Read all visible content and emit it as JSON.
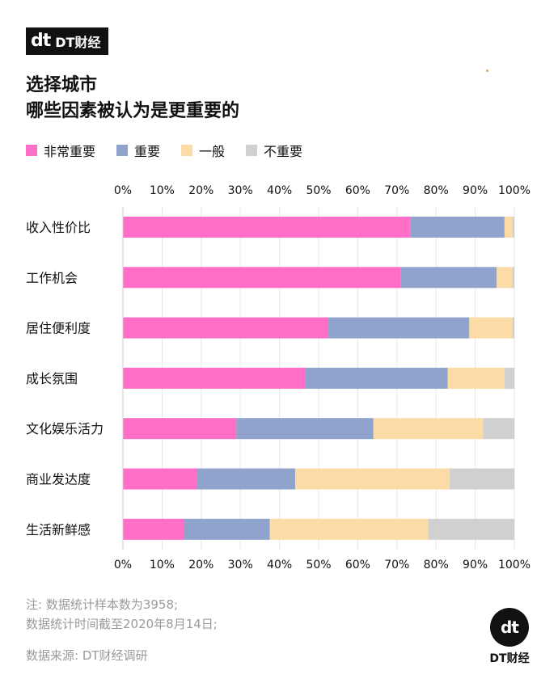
{
  "brand": {
    "logo_mark": "dt",
    "name": "DT财经",
    "accent_dot_color": "#f0a030"
  },
  "title": {
    "line1": "选择城市",
    "line2": "哪些因素被认为是更重要的"
  },
  "notes": {
    "line1": "注: 数据统计样本数为3958;",
    "line2": "数据统计时间截至2020年8月14日;"
  },
  "source": "数据来源: DT财经调研",
  "chart_data": {
    "type": "bar",
    "orientation": "horizontal",
    "stacked": true,
    "categories": [
      "收入性价比",
      "工作机会",
      "居住便利度",
      "成长氛围",
      "文化娱乐活力",
      "商业发达度",
      "生活新鲜感"
    ],
    "series": [
      {
        "name": "非常重要",
        "color": "#ff6ec7",
        "values": [
          73.5,
          71.0,
          52.5,
          46.5,
          29.0,
          19.0,
          15.5
        ]
      },
      {
        "name": "重要",
        "color": "#8fa3cc",
        "values": [
          24.0,
          24.5,
          36.0,
          36.5,
          35.0,
          25.0,
          22.0
        ]
      },
      {
        "name": "一般",
        "color": "#fbdba6",
        "values": [
          2.0,
          4.0,
          11.0,
          14.5,
          28.0,
          39.5,
          40.5
        ]
      },
      {
        "name": "不重要",
        "color": "#d0d0d0",
        "values": [
          0.5,
          0.5,
          0.5,
          2.5,
          8.0,
          16.5,
          22.0
        ]
      }
    ],
    "x_ticks": [
      "0%",
      "10%",
      "20%",
      "30%",
      "40%",
      "50%",
      "60%",
      "70%",
      "80%",
      "90%",
      "100%"
    ],
    "xlim": [
      0,
      100
    ],
    "grid": true,
    "legend_position": "top-left"
  }
}
